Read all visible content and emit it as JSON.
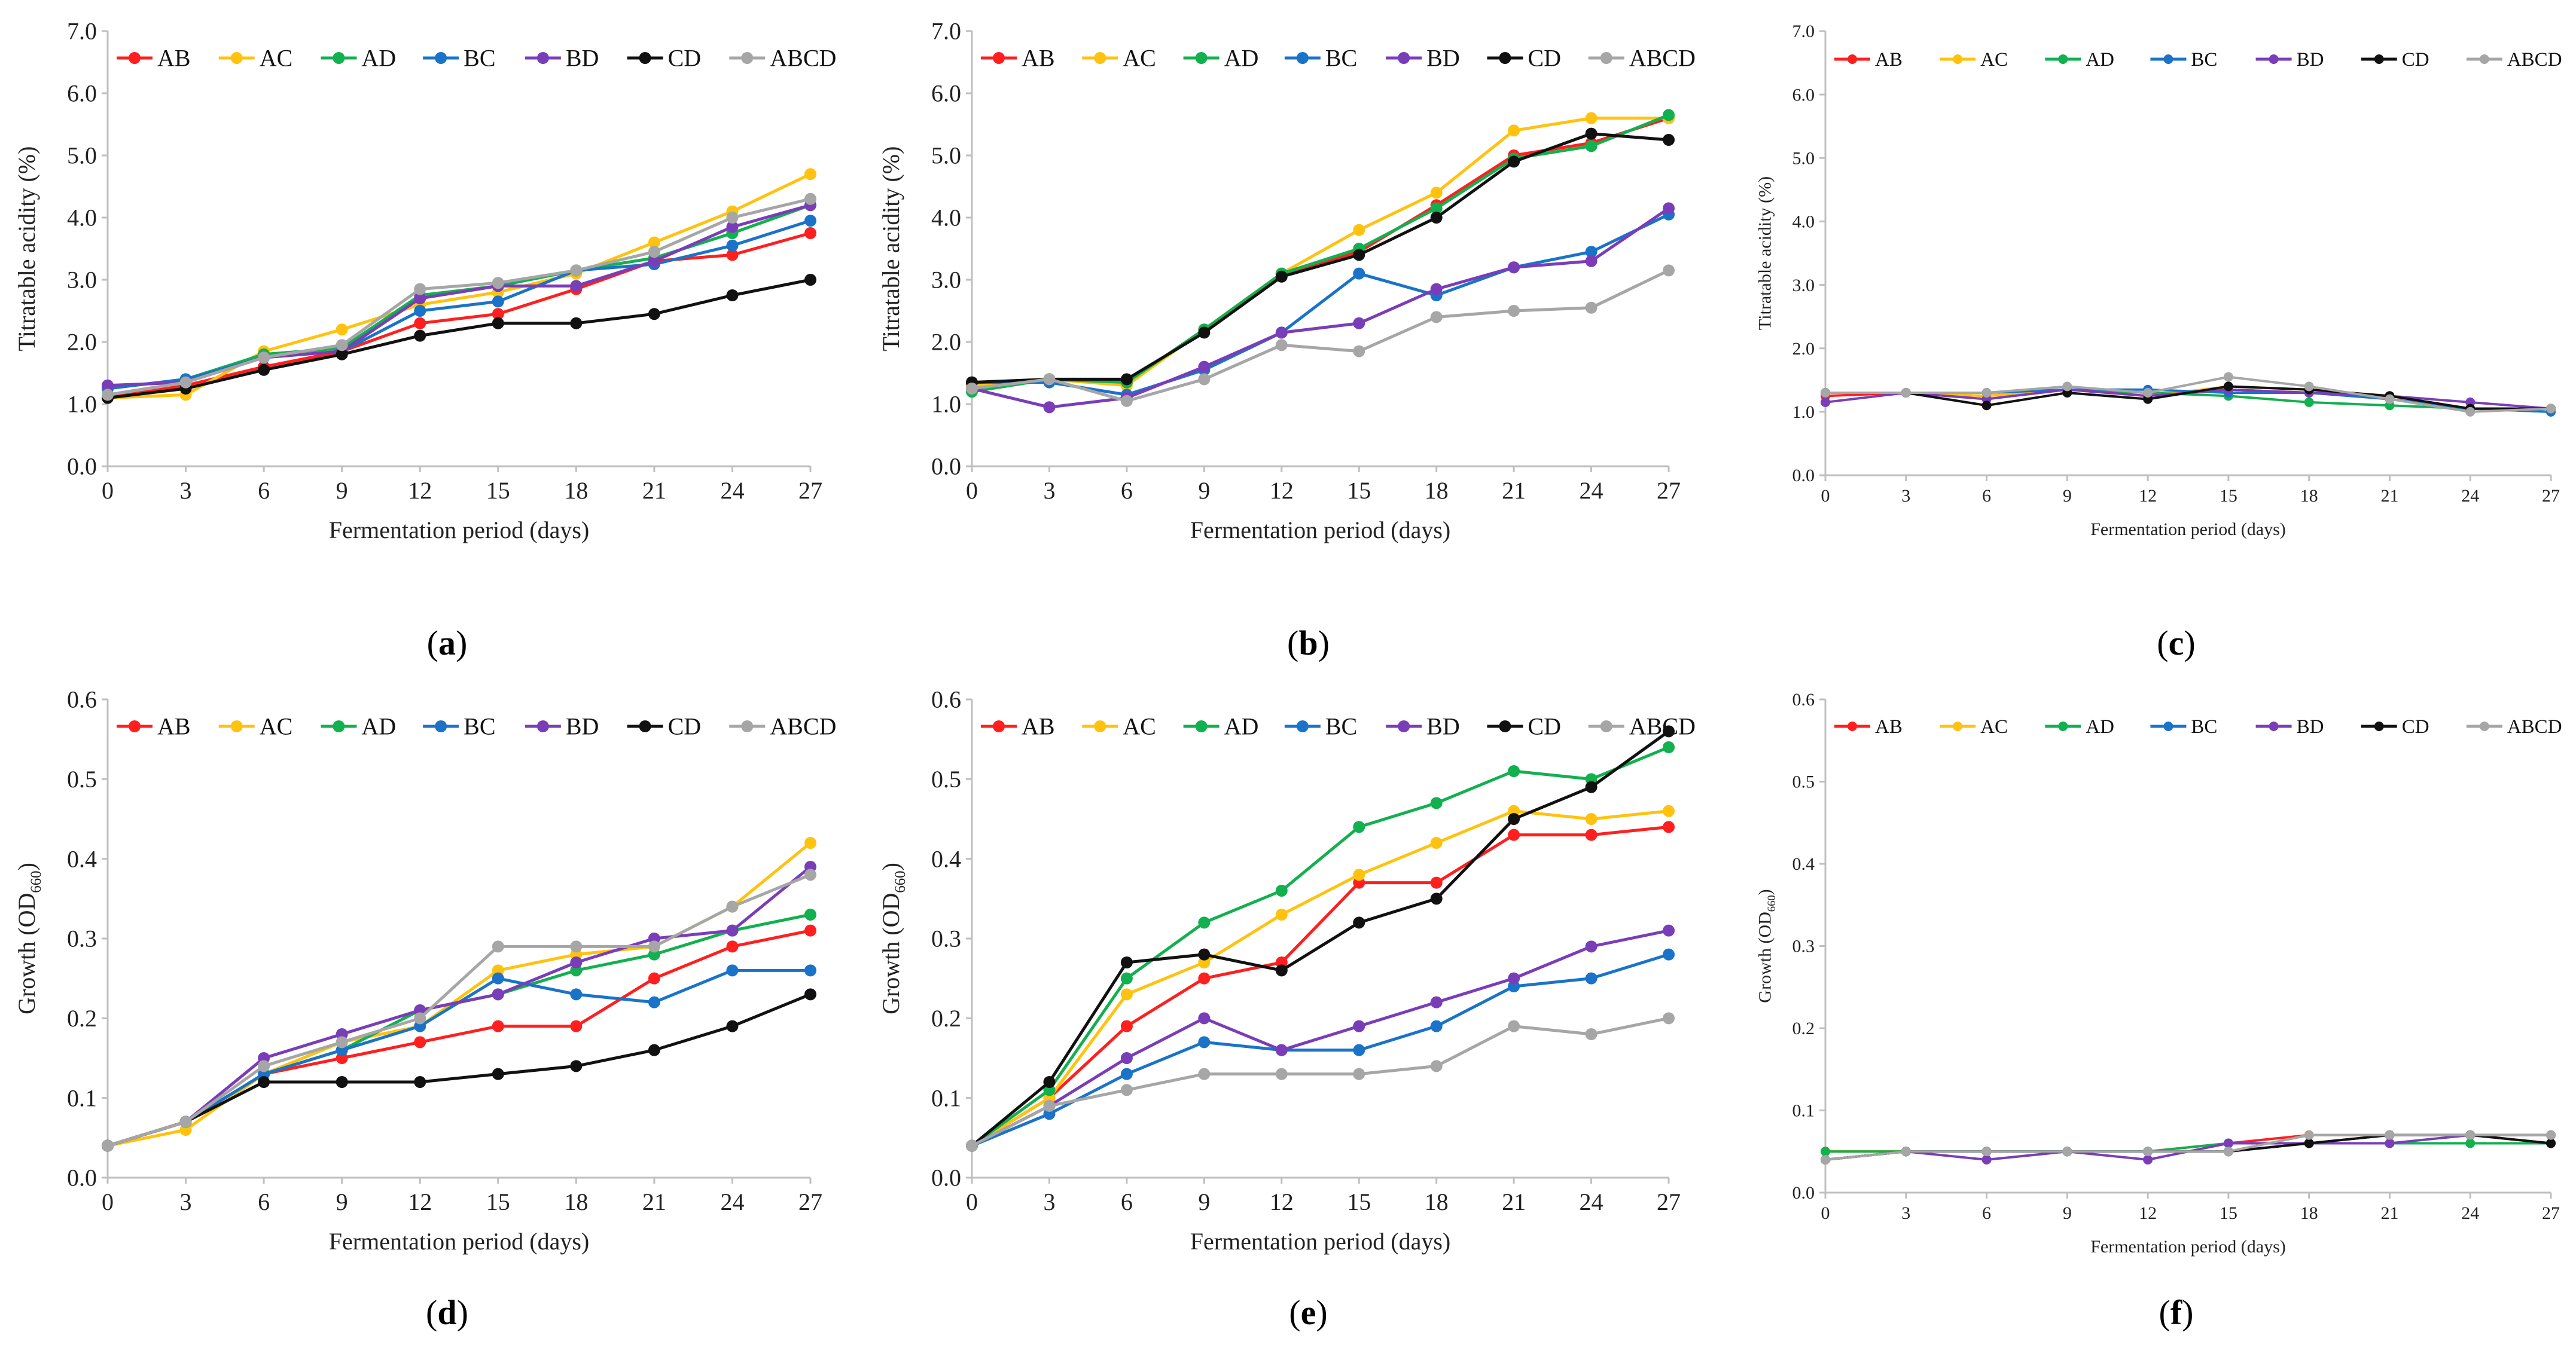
{
  "colors": {
    "AB": "#ff1f1f",
    "AC": "#ffc20e",
    "AD": "#12b04f",
    "BC": "#1a73c8",
    "BD": "#7a3db8",
    "CD": "#111111",
    "ABCD": "#a6a6a6",
    "axis": "#bfbfbf",
    "errorbar": "#555555"
  },
  "legend": [
    "AB",
    "AC",
    "AD",
    "BC",
    "BD",
    "CD",
    "ABCD"
  ],
  "chart_data": [
    {
      "type": "line",
      "panel": "a",
      "panel_label": "(a)",
      "panel_letter": "a",
      "xlabel": "Fermentation period (days)",
      "ylabel": "Titratable acidity (%)",
      "x": [
        0,
        3,
        6,
        9,
        12,
        15,
        18,
        21,
        24,
        27
      ],
      "ylim": [
        0,
        7
      ],
      "ytick_labels": [
        "0.0",
        "1.0",
        "2.0",
        "3.0",
        "4.0",
        "5.0",
        "6.0",
        "7.0"
      ],
      "series": [
        {
          "name": "AB",
          "values": [
            1.1,
            1.3,
            1.6,
            1.85,
            2.3,
            2.45,
            2.85,
            3.3,
            3.4,
            3.75
          ]
        },
        {
          "name": "AC",
          "values": [
            1.1,
            1.15,
            1.85,
            2.2,
            2.6,
            2.8,
            3.1,
            3.6,
            4.1,
            4.7
          ]
        },
        {
          "name": "AD",
          "values": [
            1.25,
            1.4,
            1.8,
            1.9,
            2.75,
            2.9,
            3.15,
            3.35,
            3.75,
            4.2
          ]
        },
        {
          "name": "BC",
          "values": [
            1.25,
            1.4,
            1.75,
            1.85,
            2.5,
            2.65,
            3.15,
            3.25,
            3.55,
            3.95
          ]
        },
        {
          "name": "BD",
          "values": [
            1.3,
            1.35,
            1.75,
            1.85,
            2.7,
            2.9,
            2.9,
            3.3,
            3.85,
            4.2
          ]
        },
        {
          "name": "CD",
          "values": [
            1.1,
            1.25,
            1.55,
            1.8,
            2.1,
            2.3,
            2.3,
            2.45,
            2.75,
            3.0
          ]
        },
        {
          "name": "ABCD",
          "values": [
            1.15,
            1.35,
            1.75,
            1.95,
            2.85,
            2.95,
            3.15,
            3.45,
            4.0,
            4.3
          ]
        }
      ]
    },
    {
      "type": "line",
      "panel": "b",
      "panel_label": "(b)",
      "panel_letter": "b",
      "xlabel": "Fermentation period (days)",
      "ylabel": "Titratable acidity (%)",
      "x": [
        0,
        3,
        6,
        9,
        12,
        15,
        18,
        21,
        24,
        27
      ],
      "ylim": [
        0,
        7
      ],
      "ytick_labels": [
        "0.0",
        "1.0",
        "2.0",
        "3.0",
        "4.0",
        "5.0",
        "6.0",
        "7.0"
      ],
      "series": [
        {
          "name": "AB",
          "values": [
            1.3,
            1.4,
            1.35,
            2.2,
            3.1,
            3.45,
            4.2,
            5.0,
            5.2,
            5.6
          ]
        },
        {
          "name": "AC",
          "values": [
            1.3,
            1.4,
            1.3,
            2.2,
            3.1,
            3.8,
            4.4,
            5.4,
            5.6,
            5.6
          ]
        },
        {
          "name": "AD",
          "values": [
            1.2,
            1.4,
            1.35,
            2.2,
            3.1,
            3.5,
            4.15,
            4.95,
            5.15,
            5.65
          ]
        },
        {
          "name": "BC",
          "values": [
            1.35,
            1.35,
            1.15,
            1.55,
            2.15,
            3.1,
            2.75,
            3.2,
            3.45,
            4.05
          ]
        },
        {
          "name": "BD",
          "values": [
            1.25,
            0.95,
            1.1,
            1.6,
            2.15,
            2.3,
            2.85,
            3.2,
            3.3,
            4.15
          ]
        },
        {
          "name": "CD",
          "values": [
            1.35,
            1.4,
            1.4,
            2.15,
            3.05,
            3.4,
            4.0,
            4.9,
            5.35,
            5.25
          ]
        },
        {
          "name": "ABCD",
          "values": [
            1.25,
            1.4,
            1.05,
            1.4,
            1.95,
            1.85,
            2.4,
            2.5,
            2.55,
            3.15
          ]
        }
      ]
    },
    {
      "type": "line",
      "panel": "c",
      "panel_label": "(c)",
      "panel_letter": "c",
      "xlabel": "Fermentation period (days)",
      "ylabel": "Titratable acidity (%)",
      "x": [
        0,
        3,
        6,
        9,
        12,
        15,
        18,
        21,
        24,
        27
      ],
      "ylim": [
        0,
        7
      ],
      "ytick_labels": [
        "0.0",
        "1.0",
        "2.0",
        "3.0",
        "4.0",
        "5.0",
        "6.0",
        "7.0"
      ],
      "series": [
        {
          "name": "AB",
          "values": [
            1.25,
            1.3,
            1.25,
            1.35,
            1.25,
            1.35,
            1.3,
            1.25,
            1.05,
            1.05
          ]
        },
        {
          "name": "AC",
          "values": [
            1.3,
            1.3,
            1.25,
            1.35,
            1.25,
            1.4,
            1.35,
            1.25,
            1.05,
            1.05
          ]
        },
        {
          "name": "AD",
          "values": [
            1.3,
            1.3,
            1.3,
            1.35,
            1.3,
            1.25,
            1.15,
            1.1,
            1.05,
            1.0
          ]
        },
        {
          "name": "BC",
          "values": [
            1.3,
            1.3,
            1.3,
            1.35,
            1.35,
            1.3,
            1.3,
            1.2,
            1.05,
            1.0
          ]
        },
        {
          "name": "BD",
          "values": [
            1.15,
            1.3,
            1.2,
            1.35,
            1.25,
            1.35,
            1.3,
            1.25,
            1.15,
            1.05
          ]
        },
        {
          "name": "CD",
          "values": [
            1.3,
            1.3,
            1.1,
            1.3,
            1.2,
            1.4,
            1.35,
            1.25,
            1.05,
            1.05
          ]
        },
        {
          "name": "ABCD",
          "values": [
            1.3,
            1.3,
            1.3,
            1.4,
            1.3,
            1.55,
            1.4,
            1.2,
            1.0,
            1.05
          ]
        }
      ]
    },
    {
      "type": "line",
      "panel": "d",
      "panel_label": "(d)",
      "panel_letter": "d",
      "xlabel": "Fermentation period (days)",
      "ylabel": "Growth (OD",
      "ylabel_sub": "660",
      "ylabel_end": ")",
      "x": [
        0,
        3,
        6,
        9,
        12,
        15,
        18,
        21,
        24,
        27
      ],
      "ylim": [
        0,
        0.6
      ],
      "ytick_labels": [
        "0.0",
        "0.1",
        "0.2",
        "0.3",
        "0.4",
        "0.5",
        "0.6"
      ],
      "series": [
        {
          "name": "AB",
          "values": [
            0.04,
            0.07,
            0.13,
            0.15,
            0.17,
            0.19,
            0.19,
            0.25,
            0.29,
            0.31
          ]
        },
        {
          "name": "AC",
          "values": [
            0.04,
            0.06,
            0.13,
            0.17,
            0.19,
            0.26,
            0.28,
            0.29,
            0.34,
            0.42
          ]
        },
        {
          "name": "AD",
          "values": [
            0.04,
            0.07,
            0.13,
            0.16,
            0.21,
            0.23,
            0.26,
            0.28,
            0.31,
            0.33
          ]
        },
        {
          "name": "BC",
          "values": [
            0.04,
            0.07,
            0.13,
            0.16,
            0.19,
            0.25,
            0.23,
            0.22,
            0.26,
            0.26
          ]
        },
        {
          "name": "BD",
          "values": [
            0.04,
            0.07,
            0.15,
            0.18,
            0.21,
            0.23,
            0.27,
            0.3,
            0.31,
            0.39
          ]
        },
        {
          "name": "CD",
          "values": [
            0.04,
            0.07,
            0.12,
            0.12,
            0.12,
            0.13,
            0.14,
            0.16,
            0.19,
            0.23
          ]
        },
        {
          "name": "ABCD",
          "values": [
            0.04,
            0.07,
            0.14,
            0.17,
            0.2,
            0.29,
            0.29,
            0.29,
            0.34,
            0.38
          ]
        }
      ]
    },
    {
      "type": "line",
      "panel": "e",
      "panel_label": "(e)",
      "panel_letter": "e",
      "xlabel": "Fermentation period (days)",
      "ylabel": "Growth (OD",
      "ylabel_sub": "660",
      "ylabel_end": ")",
      "x": [
        0,
        3,
        6,
        9,
        12,
        15,
        18,
        21,
        24,
        27
      ],
      "ylim": [
        0,
        0.6
      ],
      "ytick_labels": [
        "0.0",
        "0.1",
        "0.2",
        "0.3",
        "0.4",
        "0.5",
        "0.6"
      ],
      "series": [
        {
          "name": "AB",
          "values": [
            0.04,
            0.1,
            0.19,
            0.25,
            0.27,
            0.37,
            0.37,
            0.43,
            0.43,
            0.44
          ]
        },
        {
          "name": "AC",
          "values": [
            0.04,
            0.1,
            0.23,
            0.27,
            0.33,
            0.38,
            0.42,
            0.46,
            0.45,
            0.46
          ]
        },
        {
          "name": "AD",
          "values": [
            0.04,
            0.11,
            0.25,
            0.32,
            0.36,
            0.44,
            0.47,
            0.51,
            0.5,
            0.54
          ]
        },
        {
          "name": "BC",
          "values": [
            0.04,
            0.08,
            0.13,
            0.17,
            0.16,
            0.16,
            0.19,
            0.24,
            0.25,
            0.28
          ]
        },
        {
          "name": "BD",
          "values": [
            0.04,
            0.09,
            0.15,
            0.2,
            0.16,
            0.19,
            0.22,
            0.25,
            0.29,
            0.31
          ]
        },
        {
          "name": "CD",
          "values": [
            0.04,
            0.12,
            0.27,
            0.28,
            0.26,
            0.32,
            0.35,
            0.45,
            0.49,
            0.56
          ]
        },
        {
          "name": "ABCD",
          "values": [
            0.04,
            0.09,
            0.11,
            0.13,
            0.13,
            0.13,
            0.14,
            0.19,
            0.18,
            0.2
          ]
        }
      ]
    },
    {
      "type": "line",
      "panel": "f",
      "panel_label": "(f)",
      "panel_letter": "f",
      "xlabel": "Fermentation period (days)",
      "ylabel": "Growth (OD",
      "ylabel_sub": "660",
      "ylabel_end": ")",
      "x": [
        0,
        3,
        6,
        9,
        12,
        15,
        18,
        21,
        24,
        27
      ],
      "ylim": [
        0,
        0.6
      ],
      "ytick_labels": [
        "0.0",
        "0.1",
        "0.2",
        "0.3",
        "0.4",
        "0.5",
        "0.6"
      ],
      "series": [
        {
          "name": "AB",
          "values": [
            0.05,
            0.05,
            0.05,
            0.05,
            0.05,
            0.06,
            0.07,
            0.07,
            0.07,
            0.06
          ]
        },
        {
          "name": "AC",
          "values": [
            0.05,
            0.05,
            0.05,
            0.05,
            0.05,
            0.05,
            0.07,
            0.07,
            0.07,
            0.07
          ]
        },
        {
          "name": "AD",
          "values": [
            0.05,
            0.05,
            0.05,
            0.05,
            0.05,
            0.06,
            0.06,
            0.06,
            0.06,
            0.06
          ]
        },
        {
          "name": "BC",
          "values": [
            0.04,
            0.05,
            0.05,
            0.05,
            0.05,
            0.05,
            0.06,
            0.07,
            0.07,
            0.07
          ]
        },
        {
          "name": "BD",
          "values": [
            0.04,
            0.05,
            0.04,
            0.05,
            0.04,
            0.06,
            0.06,
            0.06,
            0.07,
            0.07
          ]
        },
        {
          "name": "CD",
          "values": [
            0.04,
            0.05,
            0.05,
            0.05,
            0.05,
            0.05,
            0.06,
            0.07,
            0.07,
            0.06
          ]
        },
        {
          "name": "ABCD",
          "values": [
            0.04,
            0.05,
            0.05,
            0.05,
            0.05,
            0.05,
            0.07,
            0.07,
            0.07,
            0.07
          ]
        }
      ]
    }
  ]
}
